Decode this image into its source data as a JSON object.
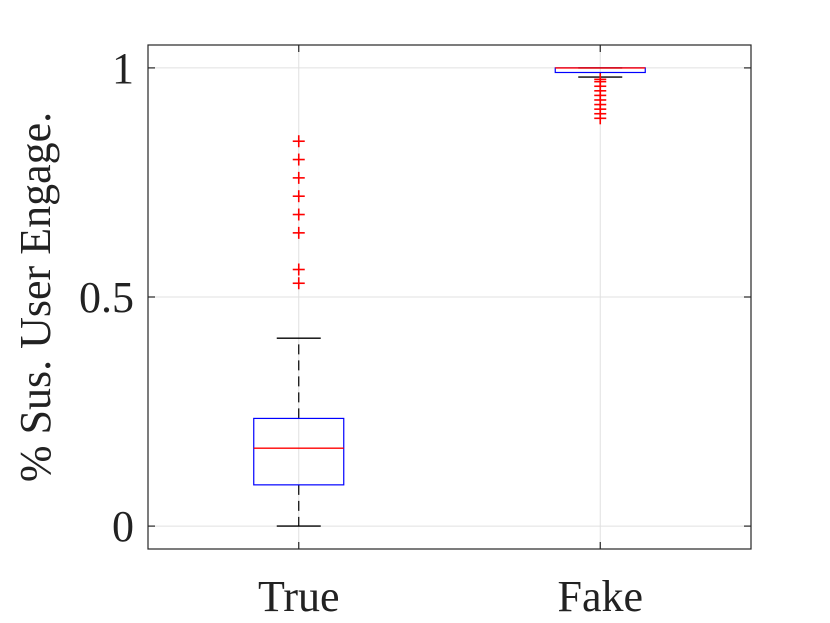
{
  "chart_data": {
    "type": "boxplot",
    "title": "",
    "xlabel": "",
    "ylabel": "% Sus. User Engage.",
    "ylim": [
      -0.05,
      1.05
    ],
    "yticks": [
      0,
      0.5,
      1
    ],
    "ytick_labels": [
      "0",
      "0.5",
      "1"
    ],
    "grid": true,
    "categories": [
      "True",
      "Fake"
    ],
    "boxes": [
      {
        "name": "True",
        "whisker_low": 0.0,
        "q1": 0.09,
        "median": 0.17,
        "q3": 0.235,
        "whisker_high": 0.41,
        "outliers": [
          0.53,
          0.56,
          0.64,
          0.68,
          0.72,
          0.76,
          0.8,
          0.84
        ]
      },
      {
        "name": "Fake",
        "whisker_low": 0.98,
        "q1": 0.99,
        "median": 1.0,
        "q3": 1.0,
        "whisker_high": 1.0,
        "outliers": [
          0.89,
          0.9,
          0.91,
          0.92,
          0.93,
          0.94,
          0.95,
          0.96,
          0.97,
          0.975
        ]
      }
    ],
    "colors": {
      "box": "#0000ff",
      "median": "#ff0000",
      "outlier": "#ff0000",
      "whisker": "#000000",
      "axis": "#262626",
      "grid": "#e0e0e0"
    }
  }
}
